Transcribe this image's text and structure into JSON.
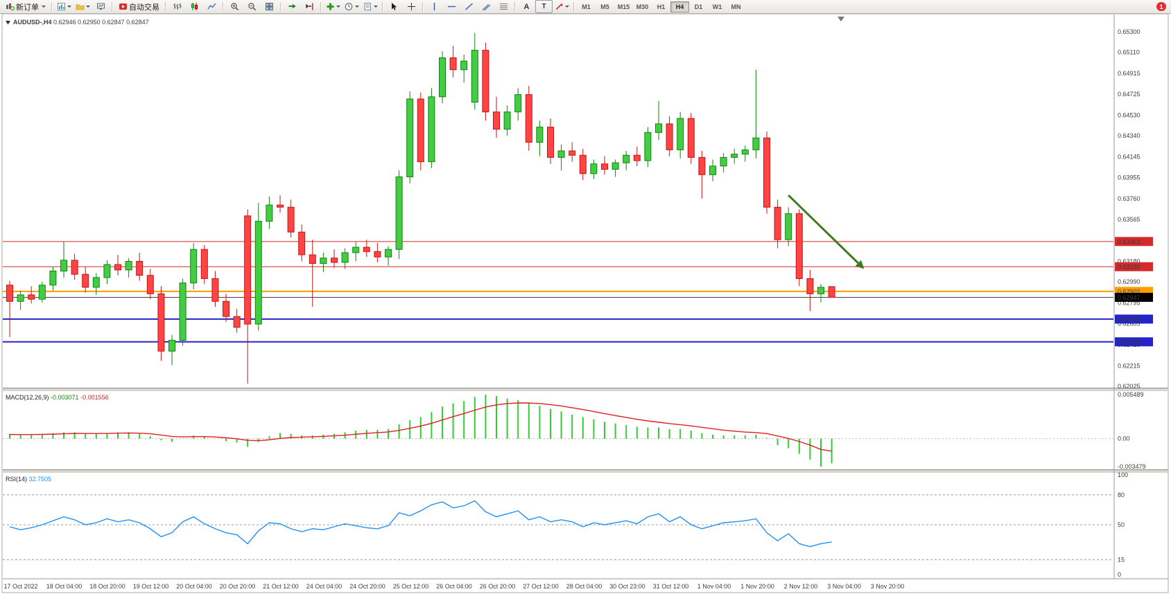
{
  "toolbar": {
    "new_order_label": "新订单",
    "autotrading_label": "自动交易",
    "text_tool_glyph": "A",
    "label_tool_glyph": "T",
    "timeframes": [
      "M1",
      "M5",
      "M15",
      "M30",
      "H1",
      "H4",
      "D1",
      "W1",
      "MN"
    ],
    "active_timeframe": "H4",
    "notification_count": "1"
  },
  "chart_data": {
    "main": {
      "type": "candlestick",
      "title": "AUDUSD-,H4",
      "ohlc_readout": "0.62946 0.62950 0.62847 0.62847",
      "price_max": 0.653,
      "price_min": 0.62025,
      "price_axis_labels": [
        "0.65300",
        "0.65110",
        "0.64915",
        "0.64725",
        "0.64530",
        "0.64340",
        "0.64145",
        "0.63955",
        "0.63760",
        "0.63565",
        "0.63375",
        "0.63180",
        "0.62990",
        "0.62795",
        "0.62605",
        "0.62410",
        "0.62215",
        "0.62025"
      ],
      "time_axis_labels": [
        "17 Oct 2022",
        "18 Oct 04:00",
        "18 Oct 20:00",
        "19 Oct 12:00",
        "20 Oct 04:00",
        "20 Oct 20:00",
        "21 Oct 12:00",
        "24 Oct 04:00",
        "24 Oct 20:00",
        "25 Oct 12:00",
        "26 Oct 04:00",
        "26 Oct 20:00",
        "27 Oct 12:00",
        "28 Oct 04:00",
        "30 Oct 23:00",
        "31 Oct 12:00",
        "1 Nov 04:00",
        "1 Nov 20:00",
        "2 Nov 12:00",
        "3 Nov 04:00",
        "3 Nov 20:00"
      ],
      "hlines": [
        {
          "price": 0.63363,
          "label": "0.63363",
          "color": "#d42a2a",
          "width": 1
        },
        {
          "price": 0.6313,
          "label": "0.63130",
          "color": "#d42a2a",
          "width": 1
        },
        {
          "price": 0.62902,
          "label": "0.62902",
          "color": "#ff9c00",
          "width": 2
        },
        {
          "price": 0.62646,
          "label": "0.62646",
          "color": "#2424c8",
          "width": 2
        },
        {
          "price": 0.62436,
          "label": "0.62436",
          "color": "#2424c8",
          "width": 2
        }
      ],
      "current_price": {
        "price": 0.62847,
        "label": "0.62847",
        "color": "#000000"
      },
      "arrow": {
        "color": "#3e7a1e",
        "from": {
          "candle": 72,
          "price": 0.6379
        },
        "to": {
          "candle": 79,
          "price": 0.6311
        }
      },
      "candles": [
        [
          0.6296,
          0.63,
          0.6248,
          0.6281
        ],
        [
          0.6281,
          0.6291,
          0.6273,
          0.6287
        ],
        [
          0.6287,
          0.6295,
          0.6279,
          0.6283
        ],
        [
          0.6283,
          0.6299,
          0.628,
          0.6296
        ],
        [
          0.6296,
          0.6313,
          0.6291,
          0.6309
        ],
        [
          0.6309,
          0.6336,
          0.6303,
          0.6319
        ],
        [
          0.6319,
          0.6325,
          0.6301,
          0.6306
        ],
        [
          0.6306,
          0.6313,
          0.6289,
          0.6294
        ],
        [
          0.6294,
          0.6307,
          0.6287,
          0.6303
        ],
        [
          0.6303,
          0.6319,
          0.6297,
          0.6315
        ],
        [
          0.6315,
          0.6324,
          0.6305,
          0.631
        ],
        [
          0.631,
          0.6321,
          0.6303,
          0.6318
        ],
        [
          0.6318,
          0.6326,
          0.63,
          0.6305
        ],
        [
          0.6305,
          0.6311,
          0.6283,
          0.6288
        ],
        [
          0.6288,
          0.6295,
          0.6226,
          0.6235
        ],
        [
          0.6235,
          0.625,
          0.6222,
          0.6245
        ],
        [
          0.6245,
          0.6302,
          0.624,
          0.6298
        ],
        [
          0.6298,
          0.6335,
          0.6292,
          0.6329
        ],
        [
          0.6329,
          0.6333,
          0.6297,
          0.6302
        ],
        [
          0.6302,
          0.6309,
          0.6276,
          0.6281
        ],
        [
          0.6281,
          0.6288,
          0.6262,
          0.6267
        ],
        [
          0.6267,
          0.6274,
          0.6252,
          0.6257
        ],
        [
          0.636,
          0.6366,
          0.6205,
          0.626
        ],
        [
          0.626,
          0.6372,
          0.6254,
          0.6355
        ],
        [
          0.6355,
          0.6378,
          0.6348,
          0.637
        ],
        [
          0.637,
          0.6379,
          0.6363,
          0.6368
        ],
        [
          0.6368,
          0.6375,
          0.634,
          0.6345
        ],
        [
          0.6345,
          0.6352,
          0.6318,
          0.6324
        ],
        [
          0.6324,
          0.6338,
          0.6276,
          0.6316
        ],
        [
          0.6316,
          0.6326,
          0.6308,
          0.6321
        ],
        [
          0.6321,
          0.6329,
          0.6312,
          0.6317
        ],
        [
          0.6317,
          0.633,
          0.6311,
          0.6326
        ],
        [
          0.6326,
          0.6336,
          0.6318,
          0.6331
        ],
        [
          0.6331,
          0.6338,
          0.6322,
          0.6327
        ],
        [
          0.6327,
          0.6335,
          0.6317,
          0.6322
        ],
        [
          0.6322,
          0.6332,
          0.6314,
          0.6329
        ],
        [
          0.6329,
          0.6402,
          0.632,
          0.6396
        ],
        [
          0.6396,
          0.6475,
          0.639,
          0.6468
        ],
        [
          0.6468,
          0.6474,
          0.6402,
          0.641
        ],
        [
          0.641,
          0.6478,
          0.6404,
          0.647
        ],
        [
          0.647,
          0.6512,
          0.6464,
          0.6506
        ],
        [
          0.6506,
          0.6517,
          0.6488,
          0.6495
        ],
        [
          0.6495,
          0.6509,
          0.6483,
          0.6503
        ],
        [
          0.6465,
          0.6529,
          0.6458,
          0.6513
        ],
        [
          0.6513,
          0.652,
          0.6448,
          0.6456
        ],
        [
          0.6456,
          0.647,
          0.6432,
          0.644
        ],
        [
          0.644,
          0.6462,
          0.6434,
          0.6456
        ],
        [
          0.6456,
          0.6478,
          0.6448,
          0.6472
        ],
        [
          0.6472,
          0.648,
          0.642,
          0.6428
        ],
        [
          0.6428,
          0.6448,
          0.6415,
          0.6442
        ],
        [
          0.6442,
          0.645,
          0.6408,
          0.6414
        ],
        [
          0.6414,
          0.6426,
          0.6402,
          0.642
        ],
        [
          0.642,
          0.6428,
          0.641,
          0.6416
        ],
        [
          0.6416,
          0.6422,
          0.6393,
          0.6399
        ],
        [
          0.6399,
          0.6412,
          0.6394,
          0.6408
        ],
        [
          0.6408,
          0.6415,
          0.6398,
          0.6403
        ],
        [
          0.6403,
          0.6412,
          0.6396,
          0.6409
        ],
        [
          0.6409,
          0.642,
          0.6402,
          0.6416
        ],
        [
          0.6416,
          0.6424,
          0.6406,
          0.6411
        ],
        [
          0.6411,
          0.6442,
          0.6405,
          0.6437
        ],
        [
          0.6437,
          0.6466,
          0.643,
          0.6445
        ],
        [
          0.6445,
          0.6452,
          0.6415,
          0.6421
        ],
        [
          0.6421,
          0.6456,
          0.6413,
          0.645
        ],
        [
          0.645,
          0.6455,
          0.6408,
          0.6414
        ],
        [
          0.6414,
          0.642,
          0.6376,
          0.6398
        ],
        [
          0.6398,
          0.6412,
          0.6392,
          0.6406
        ],
        [
          0.6406,
          0.6418,
          0.64,
          0.6414
        ],
        [
          0.6414,
          0.6422,
          0.6408,
          0.6417
        ],
        [
          0.6417,
          0.6425,
          0.641,
          0.6421
        ],
        [
          0.6421,
          0.6495,
          0.6413,
          0.6432
        ],
        [
          0.6432,
          0.6438,
          0.6362,
          0.6368
        ],
        [
          0.6368,
          0.6375,
          0.633,
          0.6338
        ],
        [
          0.6338,
          0.6368,
          0.6332,
          0.6362
        ],
        [
          0.6362,
          0.6366,
          0.6295,
          0.6302
        ],
        [
          0.6302,
          0.631,
          0.6272,
          0.6288
        ],
        [
          0.6288,
          0.6297,
          0.628,
          0.6294
        ],
        [
          0.62946,
          0.6295,
          0.62847,
          0.62847
        ]
      ],
      "colors": {
        "up_fill": "#44cc44",
        "up_stroke": "#0c870c",
        "down_fill": "#ff4444",
        "down_stroke": "#c41414"
      }
    },
    "macd": {
      "type": "bar",
      "label": "MACD(12,26,9)",
      "value_main": "-0.003071",
      "value_signal": "-0.001556",
      "axis_labels": [
        "0.005489",
        "0.00",
        "-0.003479"
      ],
      "colors": {
        "histogram": "#32cd32",
        "signal": "#e02020"
      },
      "histogram": [
        0.0006,
        0.0005,
        0.0005,
        0.0006,
        0.0007,
        0.0008,
        0.0008,
        0.0007,
        0.0006,
        0.0007,
        0.0008,
        0.0008,
        0.0006,
        0.0003,
        -0.0002,
        -0.0004,
        0.0,
        0.0004,
        0.0003,
        0.0,
        -0.0003,
        -0.0005,
        -0.001,
        -0.0004,
        0.0003,
        0.0007,
        0.0006,
        0.0004,
        0.0004,
        0.0005,
        0.0006,
        0.0008,
        0.001,
        0.0011,
        0.0011,
        0.0012,
        0.0018,
        0.0023,
        0.0027,
        0.0033,
        0.004,
        0.0044,
        0.0047,
        0.0052,
        0.0055,
        0.0053,
        0.005,
        0.0048,
        0.0044,
        0.0041,
        0.0037,
        0.0034,
        0.003,
        0.0027,
        0.0024,
        0.0021,
        0.0019,
        0.0017,
        0.0015,
        0.0014,
        0.0014,
        0.0012,
        0.0012,
        0.001,
        0.0007,
        0.0005,
        0.0004,
        0.0004,
        0.0004,
        0.0005,
        0.0001,
        -0.0008,
        -0.0012,
        -0.0019,
        -0.0026,
        -0.003479,
        -0.003071
      ],
      "signal": [
        0.00052,
        0.000516,
        0.000513,
        0.00053,
        0.000564,
        0.000611,
        0.000649,
        0.000659,
        0.000647,
        0.000658,
        0.000686,
        0.000709,
        0.000687,
        0.00061,
        0.000448,
        0.000278,
        0.000222,
        0.000258,
        0.000266,
        0.000213,
        0.00011,
        -1.2e-05,
        -0.00021,
        -0.000248,
        -0.000138,
        2.9e-05,
        0.000143,
        0.000195,
        0.000236,
        0.000289,
        0.000351,
        0.000441,
        0.000553,
        0.000662,
        0.00075,
        0.00084,
        0.001032,
        0.001286,
        0.001569,
        0.001915,
        0.002332,
        0.002745,
        0.003136,
        0.003549,
        0.003939,
        0.004211,
        0.004369,
        0.004455,
        0.004444,
        0.004375,
        0.00424,
        0.004072,
        0.003858,
        0.003626,
        0.003381,
        0.003125,
        0.00288,
        0.002644,
        0.002415,
        0.002212,
        0.00205,
        0.00188,
        0.001744,
        0.001595,
        0.001416,
        0.001233,
        0.001066,
        0.000933,
        0.000826,
        0.000761,
        0.000629,
        0.000343,
        3.4e-05,
        -0.000353,
        -0.000802,
        -0.001337,
        -0.001556
      ]
    },
    "rsi": {
      "type": "line",
      "label": "RSI(14)",
      "value": "32.7505",
      "color": "#1e90ff",
      "axis_labels": [
        "100",
        "80",
        "50",
        "15",
        "0"
      ],
      "levels": [
        80,
        50,
        15
      ],
      "values": [
        48,
        45,
        47,
        50,
        54,
        58,
        55,
        50,
        52,
        56,
        53,
        55,
        52,
        46,
        38,
        42,
        53,
        58,
        51,
        46,
        42,
        40,
        31,
        44,
        52,
        51,
        46,
        43,
        46,
        45,
        48,
        51,
        49,
        47,
        46,
        49,
        62,
        59,
        64,
        70,
        73,
        67,
        69,
        74,
        63,
        58,
        61,
        64,
        55,
        58,
        53,
        55,
        53,
        48,
        52,
        50,
        52,
        54,
        51,
        58,
        61,
        53,
        58,
        50,
        46,
        49,
        52,
        53,
        54,
        56,
        42,
        34,
        41,
        31,
        28,
        31,
        32.7505
      ]
    }
  }
}
